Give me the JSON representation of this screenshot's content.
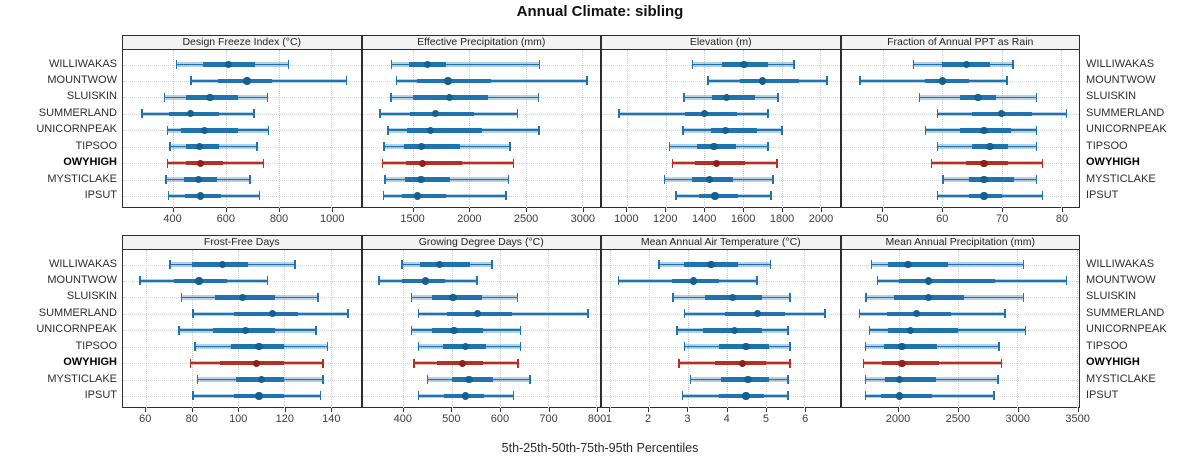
{
  "title": "Annual Climate: sibling",
  "caption": "5th-25th-50th-75th-95th Percentiles",
  "sites": [
    "WILLIWAKAS",
    "MOUNTWOW",
    "SLUISKIN",
    "SUMMERLAND",
    "UNICORNPEAK",
    "TIPSOO",
    "OWYHIGH",
    "MYSTICLAKE",
    "IPSUT"
  ],
  "highlight_site": "OWYHIGH",
  "colors": {
    "blue": "#1f74b0",
    "blue_dot": "#16608f",
    "blue_band": "#1f74b052",
    "red": "#b33025",
    "red_dot": "#8f211a",
    "red_band": "#b3302552",
    "gridline": "#cdcdcd",
    "rowline": "#d4d4d4",
    "border": "#2e2e2e",
    "header_bg": "#f3f3f3",
    "tick_text": "#3d3d3d"
  },
  "chart_data": {
    "type": "dot-whisker percentile plot (lattice, 2x4 panels)",
    "percentile_labels": [
      "5th",
      "25th",
      "50th",
      "75th",
      "95th"
    ],
    "legend_position": "none",
    "grid": "dotted vertical gridlines at ticks, dotted horizontal line per site row",
    "panels": [
      {
        "title": "Design Freeze Index (°C)",
        "row": 0,
        "col": 0,
        "domain": [
          210,
          1110
        ],
        "ticks": [
          400,
          600,
          800,
          1000
        ],
        "values": [
          [
            410,
            515,
            610,
            710,
            840
          ],
          [
            465,
            570,
            680,
            775,
            1060
          ],
          [
            365,
            450,
            540,
            645,
            760
          ],
          [
            280,
            385,
            465,
            575,
            710
          ],
          [
            375,
            430,
            520,
            645,
            765
          ],
          [
            385,
            450,
            500,
            575,
            720
          ],
          [
            375,
            450,
            505,
            590,
            745
          ],
          [
            370,
            440,
            495,
            565,
            695
          ],
          [
            380,
            445,
            505,
            580,
            730
          ]
        ]
      },
      {
        "title": "Effective Precipitation (mm)",
        "row": 0,
        "col": 1,
        "domain": [
          1050,
          3160
        ],
        "ticks": [
          1500,
          2000,
          2500,
          3000
        ],
        "values": [
          [
            1300,
            1460,
            1630,
            1790,
            2630
          ],
          [
            1345,
            1530,
            1810,
            2195,
            3050
          ],
          [
            1295,
            1495,
            1820,
            2165,
            2620
          ],
          [
            1200,
            1470,
            1695,
            2045,
            2435
          ],
          [
            1270,
            1445,
            1655,
            2110,
            2625
          ],
          [
            1235,
            1420,
            1575,
            1920,
            2370
          ],
          [
            1220,
            1435,
            1580,
            1935,
            2400
          ],
          [
            1245,
            1430,
            1570,
            1830,
            2355
          ],
          [
            1230,
            1405,
            1540,
            1790,
            2330
          ]
        ]
      },
      {
        "title": "Elevation (m)",
        "row": 0,
        "col": 2,
        "domain": [
          870,
          2100
        ],
        "ticks": [
          1000,
          1200,
          1400,
          1600,
          1800,
          2000
        ],
        "values": [
          [
            1335,
            1490,
            1605,
            1730,
            1870
          ],
          [
            1415,
            1585,
            1700,
            1890,
            2040
          ],
          [
            1290,
            1440,
            1515,
            1660,
            1785
          ],
          [
            955,
            1300,
            1400,
            1570,
            1735
          ],
          [
            1285,
            1435,
            1510,
            1675,
            1805
          ],
          [
            1215,
            1360,
            1450,
            1565,
            1735
          ],
          [
            1230,
            1350,
            1465,
            1610,
            1780
          ],
          [
            1190,
            1335,
            1425,
            1550,
            1760
          ],
          [
            1250,
            1370,
            1455,
            1575,
            1750
          ]
        ]
      },
      {
        "title": "Fraction of Annual PPT as Rain",
        "row": 0,
        "col": 3,
        "domain": [
          43,
          83
        ],
        "ticks": [
          50,
          60,
          70,
          80
        ],
        "values": [
          [
            55,
            60,
            64,
            68,
            72
          ],
          [
            46,
            57,
            60,
            64.5,
            71
          ],
          [
            56,
            63,
            66,
            69,
            76
          ],
          [
            59,
            65,
            70,
            75,
            81
          ],
          [
            57,
            63,
            67,
            71.5,
            76
          ],
          [
            59,
            65,
            68,
            71,
            76
          ],
          [
            58,
            64,
            67,
            71,
            77
          ],
          [
            60,
            64.5,
            67,
            72,
            76
          ],
          [
            59,
            64.5,
            67,
            70,
            77
          ]
        ]
      },
      {
        "title": "Frost-Free Days",
        "row": 1,
        "col": 0,
        "domain": [
          50,
          153
        ],
        "ticks": [
          60,
          80,
          100,
          120,
          140
        ],
        "values": [
          [
            70,
            80,
            93,
            104,
            125
          ],
          [
            57,
            72,
            83,
            95,
            113
          ],
          [
            75,
            90,
            102,
            116,
            135
          ],
          [
            80,
            98,
            115,
            126,
            148
          ],
          [
            74,
            89,
            103,
            116,
            134
          ],
          [
            81,
            97,
            109,
            120,
            139
          ],
          [
            79,
            92,
            108,
            120,
            137
          ],
          [
            82,
            99,
            110,
            120,
            137
          ],
          [
            80,
            98,
            109,
            120,
            136
          ]
        ]
      },
      {
        "title": "Growing Degree Days (°C)",
        "row": 1,
        "col": 1,
        "domain": [
          315,
          808
        ],
        "ticks": [
          400,
          500,
          600,
          700,
          800
        ],
        "values": [
          [
            395,
            435,
            475,
            538,
            585
          ],
          [
            348,
            397,
            446,
            487,
            554
          ],
          [
            415,
            460,
            503,
            563,
            638
          ],
          [
            430,
            490,
            553,
            625,
            785
          ],
          [
            415,
            460,
            505,
            565,
            645
          ],
          [
            430,
            483,
            528,
            572,
            645
          ],
          [
            420,
            470,
            522,
            565,
            640
          ],
          [
            448,
            500,
            536,
            585,
            664
          ],
          [
            430,
            485,
            528,
            568,
            630
          ]
        ]
      },
      {
        "title": "Mean Annual Air Temperature (°C)",
        "row": 1,
        "col": 2,
        "domain": [
          0.8,
          6.9
        ],
        "ticks": [
          1,
          2,
          3,
          4,
          5,
          6
        ],
        "values": [
          [
            2.25,
            2.9,
            3.6,
            4.3,
            5.15
          ],
          [
            1.2,
            2.6,
            3.15,
            3.8,
            4.8
          ],
          [
            2.6,
            3.45,
            4.15,
            4.9,
            5.65
          ],
          [
            2.9,
            3.95,
            4.8,
            5.5,
            6.55
          ],
          [
            2.7,
            3.4,
            4.2,
            4.9,
            5.6
          ],
          [
            2.9,
            3.8,
            4.5,
            5.1,
            5.65
          ],
          [
            2.75,
            3.7,
            4.4,
            5.0,
            5.65
          ],
          [
            3.05,
            3.85,
            4.55,
            5.1,
            5.6
          ],
          [
            2.85,
            3.8,
            4.5,
            4.95,
            5.6
          ]
        ]
      },
      {
        "title": "Mean Annual Precipitation (mm)",
        "row": 1,
        "col": 3,
        "domain": [
          1520,
          3520
        ],
        "ticks": [
          2000,
          2500,
          3000,
          3500
        ],
        "values": [
          [
            1765,
            1910,
            2080,
            2420,
            3060
          ],
          [
            1815,
            2000,
            2255,
            2810,
            3420
          ],
          [
            1720,
            1965,
            2255,
            2550,
            3060
          ],
          [
            1665,
            1905,
            2155,
            2440,
            2905
          ],
          [
            1750,
            1915,
            2100,
            2500,
            3075
          ],
          [
            1715,
            1880,
            2030,
            2325,
            2855
          ],
          [
            1700,
            1860,
            2030,
            2345,
            2875
          ],
          [
            1715,
            1885,
            2010,
            2315,
            2845
          ],
          [
            1715,
            1855,
            2010,
            2280,
            2810
          ]
        ]
      }
    ]
  }
}
